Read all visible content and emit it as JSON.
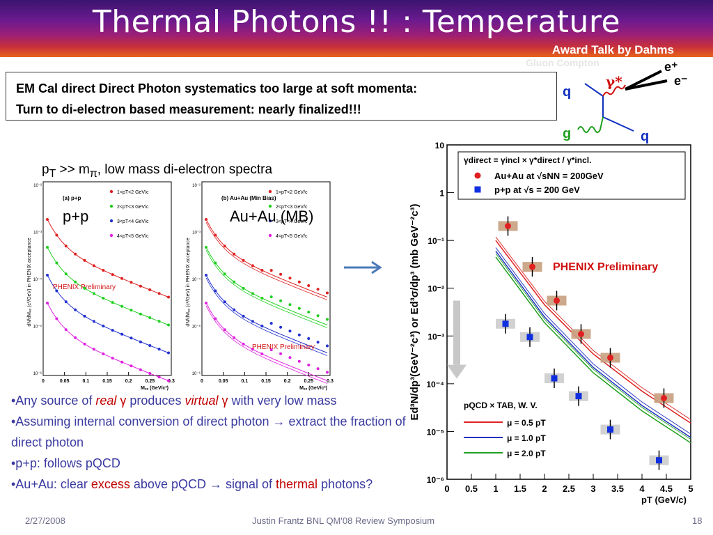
{
  "slide": {
    "title": "Thermal Photons !!  :  Temperature",
    "award": "Award Talk by  Dahms"
  },
  "callout": {
    "line1": "EM Cal direct Direct Photon systematics too large at soft momenta:",
    "line2": "Turn to di-electron based measurement:  nearly finalized!!!"
  },
  "diagram": {
    "faint_label": "Gluon Compton",
    "q_in": "q",
    "q_out": "q",
    "gluon": "g",
    "gamma_star": "γ*",
    "e_plus": "e⁺",
    "e_minus": "e⁻"
  },
  "spectra": {
    "heading_pre": "p",
    "heading_sub": "T",
    "heading_mid": " >> m",
    "heading_sub2": "π",
    "heading_post": ",  low mass di-electron spectra",
    "pp_label": "p+p",
    "auau_label": "Au+Au (MB)",
    "pp_panel_tag": "(a) p+p",
    "auau_panel_tag": "(b) Au+Au (Min Bias)",
    "pp_preliminary": "PHENIX Preliminary",
    "auau_preliminary": "PHENIX Preliminary",
    "ylabel": "dN/dMₑₑ (c²/GeV) in PHENIX acceptance",
    "xlabel": "Mₑₑ (GeV/c²)",
    "x_ticks": [
      "0",
      "0.05",
      "0.1",
      "0.15",
      "0.2",
      "0.25",
      "0.3"
    ],
    "y_ticks": [
      "10⁻²",
      "10⁻³",
      "10⁻⁴",
      "10⁻⁵",
      "10⁻⁶"
    ],
    "legend": [
      {
        "label": "1<pT<2 GeV/c",
        "color": "#e02020"
      },
      {
        "label": "2<pT<3 GeV/c",
        "color": "#20d020"
      },
      {
        "label": "3<pT<4 GeV/c",
        "color": "#2030d0"
      },
      {
        "label": "4<pT<5 GeV/c",
        "color": "#e020e0"
      }
    ]
  },
  "bullets": {
    "b1_pre": "•Any  source of ",
    "b1_real": "real",
    "b1_gamma1": " γ",
    "b1_mid": " produces ",
    "b1_virtual": "virtual",
    "b1_gamma2": " γ",
    "b1_post": " with very low mass",
    "b2": "•Assuming internal conversion of direct photon → extract the fraction of direct photon",
    "b3": "•p+p: follows pQCD",
    "b4_pre": "•Au+Au: clear ",
    "b4_excess": "excess",
    "b4_mid": " above pQCD → signal of ",
    "b4_thermal": "thermal",
    "b4_post": " photons?"
  },
  "footer": {
    "date": "2/27/2008",
    "center": "Justin Frantz BNL QM'08 Review Symposium",
    "page": "18"
  },
  "chart_data": {
    "type": "scatter",
    "title": "",
    "xlabel": "pT (GeV/c)",
    "ylabel": "Ed³N/dp³(GeV⁻²c³) or Ed³σ/dp³ (mb GeV⁻²c³)",
    "xlim": [
      0,
      5
    ],
    "ylim_log10": [
      -6,
      1
    ],
    "log_y": true,
    "x_ticks": [
      "0",
      "0.5",
      "1",
      "1.5",
      "2",
      "2.5",
      "3",
      "3.5",
      "4",
      "4.5",
      "5"
    ],
    "y_ticks": [
      "10⁻⁶",
      "10⁻⁵",
      "10⁻⁴",
      "10⁻³",
      "10⁻²",
      "10⁻¹",
      "1",
      "10"
    ],
    "annotation": "PHENIX Preliminary",
    "annotation_color": "#d01010",
    "legend_ratio": "γdirect = γincl × γ*direct / γ*incl.",
    "legend_pqcd_title": "pQCD × TAB, W. V.",
    "series": [
      {
        "name": "Au+Au at √sNN = 200GeV",
        "marker": "circle",
        "color": "#e02020",
        "x": [
          1.25,
          1.75,
          2.25,
          2.75,
          3.35,
          4.45
        ],
        "y": [
          0.2,
          0.028,
          0.0055,
          0.0011,
          0.00035,
          5e-05
        ]
      },
      {
        "name": "p+p at √s = 200 GeV",
        "marker": "square",
        "color": "#1030e0",
        "x": [
          1.2,
          1.7,
          2.2,
          2.7,
          3.35,
          4.35
        ],
        "y": [
          0.0018,
          0.00095,
          0.00013,
          5.5e-05,
          1.1e-05,
          2.5e-06
        ]
      }
    ],
    "curves": [
      {
        "name": "μ = 0.5 pT",
        "color": "#e02020",
        "x": [
          1,
          2,
          3,
          4,
          5
        ],
        "y": [
          0.1,
          0.0045,
          0.00042,
          7e-05,
          1.5e-05
        ]
      },
      {
        "name": "μ = 1.0 pT",
        "color": "#2030c0",
        "x": [
          1,
          2,
          3,
          4,
          5
        ],
        "y": [
          0.06,
          0.0025,
          0.00022,
          3.5e-05,
          7.5e-06
        ]
      },
      {
        "name": "μ = 2.0 pT",
        "color": "#20a020",
        "x": [
          1,
          2,
          3,
          4,
          5
        ],
        "y": [
          0.045,
          0.0019,
          0.00017,
          2.7e-05,
          5.8e-06
        ]
      }
    ]
  }
}
